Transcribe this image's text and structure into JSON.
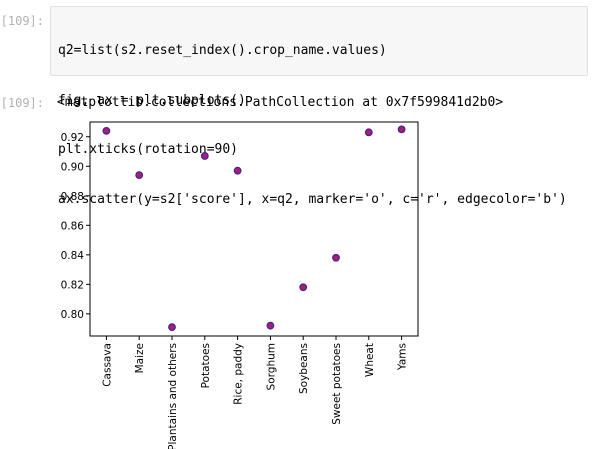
{
  "cell_input": {
    "prompt": "[109]:",
    "code_lines": [
      "q2=list(s2.reset_index().crop_name.values)",
      "fig, ax = plt.subplots()",
      "plt.xticks(rotation=90)",
      "ax.scatter(y=s2['score'], x=q2, marker='o', c='r', edgecolor='b')"
    ]
  },
  "cell_output": {
    "prompt": "[109]:",
    "text": "<matplotlib.collections.PathCollection at 0x7f599841d2b0>"
  },
  "chart_data": {
    "type": "scatter",
    "categories": [
      "Cassava",
      "Maize",
      "Plantains and others",
      "Potatoes",
      "Rice, paddy",
      "Sorghum",
      "Soybeans",
      "Sweet potatoes",
      "Wheat",
      "Yams"
    ],
    "values": [
      0.924,
      0.894,
      0.791,
      0.907,
      0.897,
      0.792,
      0.818,
      0.838,
      0.923,
      0.925
    ],
    "yticks": [
      "0.80",
      "0.82",
      "0.84",
      "0.86",
      "0.88",
      "0.90",
      "0.92"
    ],
    "ylim": [
      0.785,
      0.93
    ],
    "marker_fill": "#a0207a",
    "marker_edge": "#3a1f8f",
    "grid": false
  }
}
